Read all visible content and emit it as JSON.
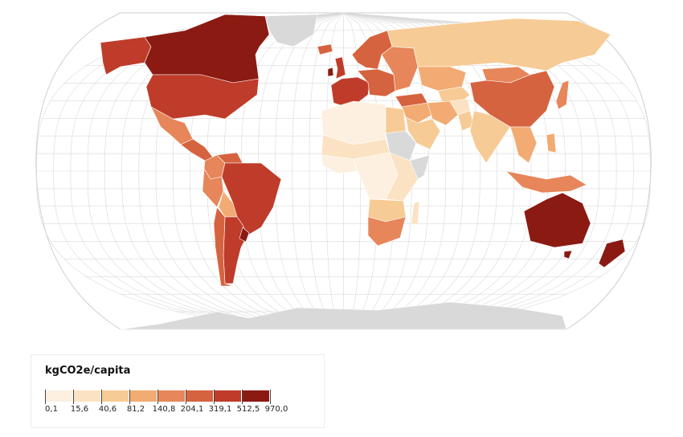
{
  "legend": {
    "title": "kgCO2e/capita",
    "ticks": [
      "0,1",
      "15,6",
      "40,6",
      "81,2",
      "140,8",
      "204,1",
      "319,1",
      "512,5",
      "970,0"
    ],
    "colors": [
      "#fdf0e0",
      "#fbe2c2",
      "#f7cb95",
      "#f2ab73",
      "#e6865a",
      "#d6633f",
      "#bf3c2a",
      "#8b1a12"
    ],
    "no_data_color": "#d9d9d9"
  },
  "countries": [
    {
      "name": "Canada",
      "class": 7
    },
    {
      "name": "United States",
      "class": 6
    },
    {
      "name": "Alaska",
      "class": 6
    },
    {
      "name": "Greenland",
      "class": -1
    },
    {
      "name": "Mexico",
      "class": 4
    },
    {
      "name": "Central America",
      "class": 5
    },
    {
      "name": "Colombia",
      "class": 4
    },
    {
      "name": "Venezuela",
      "class": 5
    },
    {
      "name": "Brazil",
      "class": 6
    },
    {
      "name": "Peru",
      "class": 4
    },
    {
      "name": "Bolivia",
      "class": 3
    },
    {
      "name": "Paraguay",
      "class": 5
    },
    {
      "name": "Argentina",
      "class": 6
    },
    {
      "name": "Chile",
      "class": 5
    },
    {
      "name": "Uruguay",
      "class": 7
    },
    {
      "name": "Iceland",
      "class": 5
    },
    {
      "name": "Ireland",
      "class": 7
    },
    {
      "name": "United Kingdom",
      "class": 6
    },
    {
      "name": "Scandinavia",
      "class": 5
    },
    {
      "name": "Western Europe",
      "class": 6
    },
    {
      "name": "Central Europe",
      "class": 5
    },
    {
      "name": "Eastern Europe",
      "class": 4
    },
    {
      "name": "Russia",
      "class": 2
    },
    {
      "name": "Kazakhstan",
      "class": 3
    },
    {
      "name": "Central Asia",
      "class": 2
    },
    {
      "name": "Turkey",
      "class": 5
    },
    {
      "name": "Middle East",
      "class": 3
    },
    {
      "name": "Iran",
      "class": 3
    },
    {
      "name": "Saudi Arabia",
      "class": 2
    },
    {
      "name": "Afghanistan",
      "class": 1
    },
    {
      "name": "Pakistan",
      "class": 2
    },
    {
      "name": "India",
      "class": 2
    },
    {
      "name": "China",
      "class": 5
    },
    {
      "name": "Mongolia",
      "class": 4
    },
    {
      "name": "Southeast Asia",
      "class": 3
    },
    {
      "name": "Indonesia",
      "class": 4
    },
    {
      "name": "Philippines",
      "class": 3
    },
    {
      "name": "Japan",
      "class": 4
    },
    {
      "name": "North Africa",
      "class": 0
    },
    {
      "name": "Egypt",
      "class": 2
    },
    {
      "name": "Sahel",
      "class": 1
    },
    {
      "name": "Sudan",
      "class": -1
    },
    {
      "name": "West Africa",
      "class": 0
    },
    {
      "name": "Central Africa",
      "class": 0
    },
    {
      "name": "East Africa",
      "class": 1
    },
    {
      "name": "Somalia",
      "class": -1
    },
    {
      "name": "Southern Africa",
      "class": 2
    },
    {
      "name": "South Africa",
      "class": 4
    },
    {
      "name": "Madagascar",
      "class": 1
    },
    {
      "name": "Australia",
      "class": 7
    },
    {
      "name": "Tasmania",
      "class": 7
    },
    {
      "name": "New Zealand",
      "class": 7
    },
    {
      "name": "Antarctica",
      "class": -1
    }
  ]
}
